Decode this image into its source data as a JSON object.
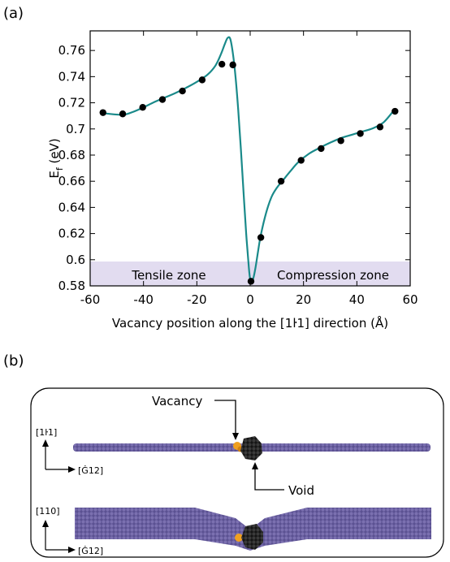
{
  "panel_a": {
    "label": "(a)"
  },
  "panel_b": {
    "label": "(b)",
    "vacancy_label": "Vacancy",
    "void_label": "Void",
    "axes_top": {
      "up": "[1ŀ1]",
      "right": "[Ġ12]"
    },
    "axes_bottom": {
      "up": "[110]",
      "right": "[Ġ12]"
    },
    "colors": {
      "atoms": "#6a5f9e",
      "vacancy": "#f0a020",
      "void": "#222222"
    }
  },
  "chart_data": {
    "type": "line",
    "xlabel": "Vacancy position along the [1ŀ1] direction (Å)",
    "ylabel_main": "E",
    "ylabel_sub": "f",
    "ylabel_unit": " (eV)",
    "xlim": [
      -60,
      60
    ],
    "ylim": [
      0.58,
      0.775
    ],
    "xticks": [
      -60,
      -40,
      -20,
      0,
      20,
      40,
      60
    ],
    "yticks": [
      0.58,
      0.6,
      0.62,
      0.64,
      0.66,
      0.68,
      0.7,
      0.72,
      0.74,
      0.76
    ],
    "ytick_labels": [
      "0.58",
      "0.6",
      "0.62",
      "0.64",
      "0.66",
      "0.68",
      "0.7",
      "0.72",
      "0.74",
      "0.76"
    ],
    "grid": false,
    "points": {
      "x": [
        -55.2,
        -47.8,
        -40.3,
        -32.9,
        -25.4,
        -18.0,
        -10.6,
        -6.5,
        0.3,
        4.0,
        11.6,
        19.1,
        26.6,
        34.0,
        41.3,
        48.7,
        54.3
      ],
      "y": [
        0.7125,
        0.7115,
        0.7165,
        0.7225,
        0.729,
        0.7375,
        0.7495,
        0.749,
        0.5835,
        0.617,
        0.66,
        0.676,
        0.685,
        0.691,
        0.6965,
        0.7015,
        0.7135
      ]
    },
    "curve": {
      "x": [
        -55,
        -50,
        -47,
        -44,
        -40,
        -36,
        -32,
        -28,
        -24,
        -20,
        -16,
        -13,
        -11,
        -9.5,
        -8.5,
        -7.5,
        -6.5,
        -5.5,
        -4.5,
        -3.5,
        -2.5,
        -1.5,
        -0.5,
        0,
        0.5,
        1.2,
        2,
        3,
        4,
        6,
        8,
        10,
        12,
        15,
        18,
        22,
        26,
        30,
        34,
        38,
        42,
        46,
        50,
        54
      ],
      "y": [
        0.712,
        0.711,
        0.711,
        0.713,
        0.7165,
        0.7205,
        0.724,
        0.7275,
        0.7315,
        0.736,
        0.7415,
        0.7485,
        0.757,
        0.765,
        0.7695,
        0.769,
        0.758,
        0.74,
        0.715,
        0.685,
        0.652,
        0.62,
        0.594,
        0.585,
        0.583,
        0.586,
        0.594,
        0.607,
        0.619,
        0.636,
        0.648,
        0.655,
        0.66,
        0.6675,
        0.6745,
        0.681,
        0.6855,
        0.6895,
        0.693,
        0.6955,
        0.698,
        0.7005,
        0.705,
        0.7145
      ]
    },
    "series_color": "#1a8a8a",
    "zones": [
      {
        "label": "Tensile zone",
        "x_range": [
          -60,
          0
        ],
        "y_range": [
          0.58,
          0.6
        ]
      },
      {
        "label": "Compression zone",
        "x_range": [
          0,
          60
        ],
        "y_range": [
          0.58,
          0.6
        ]
      }
    ],
    "zone_color": "#e2dcf0"
  }
}
